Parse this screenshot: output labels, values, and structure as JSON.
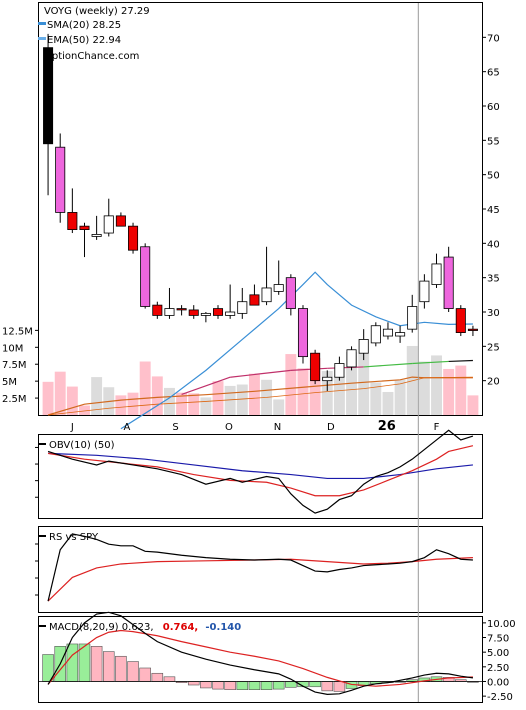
{
  "chart_data": {
    "type": "candlestick",
    "ticker": "VOYG",
    "interval": "(weekly)",
    "last_price": "27.29",
    "source": "OptionChance.com",
    "legend": [
      {
        "label": "SMA(20)",
        "value": "28.25",
        "color": "#3a8fd6"
      },
      {
        "label": "EMA(50)",
        "value": "22.94",
        "color": "#6aaee8"
      }
    ],
    "x_labels": [
      "J",
      "A",
      "S",
      "O",
      "N",
      "D",
      "26",
      "F"
    ],
    "price_axis": {
      "ylim": [
        15,
        75
      ],
      "ticks": [
        20,
        25,
        30,
        35,
        40,
        45,
        50,
        55,
        60,
        65,
        70
      ]
    },
    "volume_axis": {
      "ylim": [
        0,
        13000000
      ],
      "tick_labels": [
        "2.5M",
        "5M",
        "7.5M",
        "10M",
        "12.5M"
      ],
      "tick_values": [
        2500000,
        5000000,
        7500000,
        10000000,
        12500000
      ]
    },
    "candles": [
      {
        "o": 68.5,
        "h": 70.5,
        "l": 47.0,
        "c": 54.5,
        "v": 4900000
      },
      {
        "o": 54.0,
        "h": 56.0,
        "l": 43.0,
        "c": 44.5,
        "v": 6400000
      },
      {
        "o": 44.5,
        "h": 48.0,
        "l": 41.5,
        "c": 42.0,
        "v": 4200000
      },
      {
        "o": 42.5,
        "h": 43.0,
        "l": 38.0,
        "c": 42.0,
        "v": 1400000
      },
      {
        "o": 41.0,
        "h": 44.0,
        "l": 40.5,
        "c": 41.3,
        "v": 5600000
      },
      {
        "o": 41.5,
        "h": 46.5,
        "l": 41.0,
        "c": 44.0,
        "v": 4100000
      },
      {
        "o": 44.0,
        "h": 44.5,
        "l": 42.5,
        "c": 42.5,
        "v": 2900000
      },
      {
        "o": 42.5,
        "h": 43.0,
        "l": 38.5,
        "c": 39.0,
        "v": 3300000
      },
      {
        "o": 39.5,
        "h": 40.0,
        "l": 30.5,
        "c": 30.8,
        "v": 7900000
      },
      {
        "o": 31.0,
        "h": 31.5,
        "l": 29.0,
        "c": 29.5,
        "v": 5700000
      },
      {
        "o": 29.5,
        "h": 33.5,
        "l": 29.0,
        "c": 30.5,
        "v": 4000000
      },
      {
        "o": 30.5,
        "h": 31.0,
        "l": 29.5,
        "c": 30.3,
        "v": 3300000
      },
      {
        "o": 30.3,
        "h": 31.0,
        "l": 29.0,
        "c": 29.5,
        "v": 3200000
      },
      {
        "o": 29.5,
        "h": 30.0,
        "l": 28.5,
        "c": 29.8,
        "v": 2600000
      },
      {
        "o": 30.5,
        "h": 31.0,
        "l": 29.0,
        "c": 29.5,
        "v": 5000000
      },
      {
        "o": 29.5,
        "h": 34.0,
        "l": 29.0,
        "c": 30.0,
        "v": 4300000
      },
      {
        "o": 29.8,
        "h": 33.5,
        "l": 29.0,
        "c": 31.5,
        "v": 4500000
      },
      {
        "o": 32.5,
        "h": 34.0,
        "l": 31.0,
        "c": 31.0,
        "v": 6100000
      },
      {
        "o": 31.5,
        "h": 39.5,
        "l": 31.0,
        "c": 33.5,
        "v": 5200000
      },
      {
        "o": 33.0,
        "h": 37.5,
        "l": 32.5,
        "c": 34.0,
        "v": 2300000
      },
      {
        "o": 35.0,
        "h": 35.5,
        "l": 29.5,
        "c": 30.5,
        "v": 9000000
      },
      {
        "o": 30.5,
        "h": 31.0,
        "l": 22.5,
        "c": 23.5,
        "v": 6900000
      },
      {
        "o": 24.0,
        "h": 24.5,
        "l": 19.5,
        "c": 20.0,
        "v": 8400000
      },
      {
        "o": 20.0,
        "h": 21.5,
        "l": 18.5,
        "c": 20.5,
        "v": 6500000
      },
      {
        "o": 20.5,
        "h": 23.5,
        "l": 20.0,
        "c": 22.5,
        "v": 5800000
      },
      {
        "o": 22.0,
        "h": 25.0,
        "l": 21.5,
        "c": 24.5,
        "v": 9300000
      },
      {
        "o": 24.0,
        "h": 27.5,
        "l": 23.0,
        "c": 26.0,
        "v": 9100000
      },
      {
        "o": 25.5,
        "h": 28.5,
        "l": 25.0,
        "c": 28.0,
        "v": 4800000
      },
      {
        "o": 26.5,
        "h": 28.5,
        "l": 26.0,
        "c": 27.5,
        "v": 3400000
      },
      {
        "o": 26.5,
        "h": 28.0,
        "l": 25.5,
        "c": 27.0,
        "v": 5200000
      },
      {
        "o": 27.5,
        "h": 32.5,
        "l": 27.0,
        "c": 30.8,
        "v": 10200000
      },
      {
        "o": 31.5,
        "h": 35.5,
        "l": 30.5,
        "c": 34.5,
        "v": 7900000
      },
      {
        "o": 34.0,
        "h": 38.5,
        "l": 33.5,
        "c": 37.0,
        "v": 8800000
      },
      {
        "o": 38.0,
        "h": 39.5,
        "l": 30.0,
        "c": 30.5,
        "v": 6800000
      },
      {
        "o": 30.5,
        "h": 31.0,
        "l": 26.5,
        "c": 27.0,
        "v": 7300000
      },
      {
        "o": 27.5,
        "h": 28.0,
        "l": 26.5,
        "c": 27.3,
        "v": 2900000
      }
    ],
    "sma20": [
      [
        0,
        null
      ],
      [
        5,
        null
      ],
      [
        6,
        13.0
      ],
      [
        10,
        17.5
      ],
      [
        13,
        21.5
      ],
      [
        16,
        26.0
      ],
      [
        19,
        30.5
      ],
      [
        21,
        34.0
      ],
      [
        22,
        35.8
      ],
      [
        23,
        34.0
      ],
      [
        25,
        31.0
      ],
      [
        27,
        29.3
      ],
      [
        29,
        28.0
      ],
      [
        31,
        28.5
      ],
      [
        33,
        28.2
      ],
      [
        35,
        28.25
      ]
    ],
    "ema50": [
      [
        0,
        null
      ],
      [
        11,
        18.0
      ],
      [
        15,
        20.5
      ],
      [
        20,
        21.5
      ],
      [
        23,
        21.8
      ],
      [
        26,
        22.0
      ],
      [
        30,
        22.5
      ],
      [
        33,
        22.8
      ],
      [
        35,
        22.94
      ]
    ],
    "vol_ma": [
      [
        0,
        0
      ],
      [
        3,
        1600000
      ],
      [
        6,
        2200000
      ],
      [
        9,
        2600000
      ],
      [
        13,
        3000000
      ],
      [
        17,
        3500000
      ],
      [
        21,
        4100000
      ],
      [
        25,
        4700000
      ],
      [
        29,
        5200000
      ],
      [
        30,
        5600000
      ],
      [
        31,
        5500000
      ],
      [
        35,
        5500000
      ]
    ],
    "vol_ma_long": [
      [
        0,
        0
      ],
      [
        5,
        1000000
      ],
      [
        9,
        1600000
      ],
      [
        13,
        2000000
      ],
      [
        18,
        2600000
      ],
      [
        22,
        3300000
      ],
      [
        26,
        3900000
      ],
      [
        29,
        4600000
      ],
      [
        31,
        5500000
      ],
      [
        35,
        5600000
      ]
    ],
    "obv": {
      "label": "OBV(10) (50)",
      "ylim": [
        -1,
        1
      ],
      "line": [
        [
          0,
          0.65
        ],
        [
          2,
          0.45
        ],
        [
          4,
          0.3
        ],
        [
          5,
          0.4
        ],
        [
          7,
          0.3
        ],
        [
          9,
          0.2
        ],
        [
          11,
          0.05
        ],
        [
          13,
          -0.2
        ],
        [
          15,
          -0.05
        ],
        [
          16,
          -0.15
        ],
        [
          18,
          0.0
        ],
        [
          19,
          -0.05
        ],
        [
          20,
          -0.45
        ],
        [
          21,
          -0.75
        ],
        [
          22,
          -0.95
        ],
        [
          23,
          -0.85
        ],
        [
          24,
          -0.6
        ],
        [
          25,
          -0.5
        ],
        [
          26,
          -0.2
        ],
        [
          27,
          0.0
        ],
        [
          28,
          0.1
        ],
        [
          29,
          0.25
        ],
        [
          30,
          0.45
        ],
        [
          31,
          0.7
        ],
        [
          32,
          0.95
        ],
        [
          33,
          1.2
        ],
        [
          34,
          0.95
        ],
        [
          35,
          1.05
        ]
      ],
      "signal": [
        [
          0,
          0.6
        ],
        [
          3,
          0.45
        ],
        [
          6,
          0.35
        ],
        [
          9,
          0.25
        ],
        [
          12,
          0.05
        ],
        [
          15,
          -0.1
        ],
        [
          18,
          -0.15
        ],
        [
          20,
          -0.3
        ],
        [
          22,
          -0.5
        ],
        [
          24,
          -0.5
        ],
        [
          26,
          -0.35
        ],
        [
          28,
          -0.1
        ],
        [
          30,
          0.15
        ],
        [
          32,
          0.45
        ],
        [
          33,
          0.65
        ],
        [
          35,
          0.8
        ]
      ],
      "slow": [
        [
          0,
          0.6
        ],
        [
          4,
          0.55
        ],
        [
          8,
          0.45
        ],
        [
          12,
          0.3
        ],
        [
          16,
          0.15
        ],
        [
          20,
          0.05
        ],
        [
          23,
          -0.05
        ],
        [
          26,
          -0.05
        ],
        [
          29,
          0.05
        ],
        [
          32,
          0.2
        ],
        [
          35,
          0.3
        ]
      ]
    },
    "rs": {
      "label": "RS vs SPY",
      "ylim": [
        0,
        1
      ],
      "line": [
        [
          0,
          0.1
        ],
        [
          1,
          0.75
        ],
        [
          2,
          0.95
        ],
        [
          3,
          0.92
        ],
        [
          4,
          0.88
        ],
        [
          5,
          0.82
        ],
        [
          6,
          0.8
        ],
        [
          7,
          0.8
        ],
        [
          8,
          0.73
        ],
        [
          9,
          0.72
        ],
        [
          11,
          0.68
        ],
        [
          13,
          0.65
        ],
        [
          15,
          0.63
        ],
        [
          17,
          0.62
        ],
        [
          19,
          0.63
        ],
        [
          20,
          0.62
        ],
        [
          21,
          0.55
        ],
        [
          22,
          0.48
        ],
        [
          23,
          0.47
        ],
        [
          24,
          0.5
        ],
        [
          25,
          0.52
        ],
        [
          26,
          0.55
        ],
        [
          27,
          0.56
        ],
        [
          28,
          0.57
        ],
        [
          29,
          0.58
        ],
        [
          30,
          0.6
        ],
        [
          31,
          0.65
        ],
        [
          32,
          0.75
        ],
        [
          33,
          0.7
        ],
        [
          34,
          0.63
        ],
        [
          35,
          0.62
        ]
      ],
      "signal": [
        [
          0,
          0.1
        ],
        [
          2,
          0.4
        ],
        [
          4,
          0.52
        ],
        [
          6,
          0.57
        ],
        [
          9,
          0.6
        ],
        [
          13,
          0.61
        ],
        [
          17,
          0.62
        ],
        [
          20,
          0.63
        ],
        [
          23,
          0.6
        ],
        [
          26,
          0.57
        ],
        [
          28,
          0.58
        ],
        [
          30,
          0.6
        ],
        [
          32,
          0.63
        ],
        [
          35,
          0.65
        ]
      ]
    },
    "macd": {
      "label": "MACD(8,20,9)",
      "value": "0.623,",
      "signal_value": "0.764,",
      "hist_value": "-0.140",
      "signal_color": "#dd0000",
      "hist_color": "#2255aa",
      "ylim": [
        -3.5,
        11
      ],
      "ticks": [
        10.0,
        7.5,
        5.0,
        2.5,
        0.0,
        -2.5
      ],
      "tick_labels": [
        "10.00",
        "7.50",
        "5.00",
        "2.50",
        "0.00",
        "-2.50"
      ],
      "line": [
        [
          0,
          -0.5
        ],
        [
          1,
          3.0
        ],
        [
          2,
          7.5
        ],
        [
          3,
          10.0
        ],
        [
          4,
          11.5
        ],
        [
          5,
          11.8
        ],
        [
          6,
          11.2
        ],
        [
          7,
          9.7
        ],
        [
          8,
          8.2
        ],
        [
          9,
          6.8
        ],
        [
          11,
          5.0
        ],
        [
          13,
          3.8
        ],
        [
          15,
          2.8
        ],
        [
          17,
          2.0
        ],
        [
          19,
          1.3
        ],
        [
          20,
          0.4
        ],
        [
          21,
          -0.8
        ],
        [
          22,
          -1.8
        ],
        [
          23,
          -2.2
        ],
        [
          24,
          -2.1
        ],
        [
          25,
          -1.5
        ],
        [
          26,
          -0.8
        ],
        [
          27,
          -0.4
        ],
        [
          28,
          -0.2
        ],
        [
          29,
          0.2
        ],
        [
          30,
          0.6
        ],
        [
          31,
          1.1
        ],
        [
          32,
          1.4
        ],
        [
          33,
          1.3
        ],
        [
          34,
          0.9
        ],
        [
          35,
          0.62
        ]
      ],
      "signal": [
        [
          0,
          -0.5
        ],
        [
          2,
          4.5
        ],
        [
          4,
          7.5
        ],
        [
          5,
          8.4
        ],
        [
          6,
          8.7
        ],
        [
          7,
          8.5
        ],
        [
          9,
          7.8
        ],
        [
          11,
          6.8
        ],
        [
          13,
          5.9
        ],
        [
          15,
          5.0
        ],
        [
          17,
          4.3
        ],
        [
          19,
          3.5
        ],
        [
          21,
          2.2
        ],
        [
          23,
          0.7
        ],
        [
          25,
          -0.5
        ],
        [
          27,
          -0.8
        ],
        [
          29,
          -0.5
        ],
        [
          31,
          0.1
        ],
        [
          33,
          0.6
        ],
        [
          35,
          0.76
        ]
      ],
      "hist": [
        4.6,
        6.0,
        6.4,
        6.4,
        6.0,
        5.1,
        4.3,
        3.4,
        2.3,
        1.4,
        0.8,
        -0.2,
        -0.6,
        -1.1,
        -1.3,
        -1.4,
        -1.4,
        -1.4,
        -1.4,
        -1.3,
        -1.0,
        -0.9,
        -0.9,
        -1.6,
        -1.7,
        -1.2,
        -0.7,
        -0.4,
        -0.2,
        0.0,
        0.3,
        0.6,
        0.8,
        0.7,
        0.3,
        -0.14
      ]
    }
  }
}
